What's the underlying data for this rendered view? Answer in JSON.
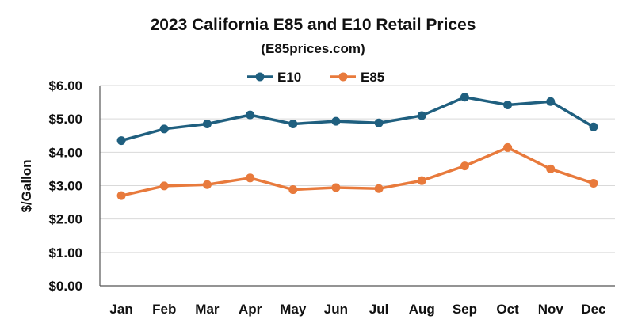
{
  "chart_data": {
    "type": "line",
    "title": "2023 California E85 and E10 Retail Prices",
    "subtitle": "(E85prices.com)",
    "xlabel": "",
    "ylabel": "$/Gallon",
    "categories": [
      "Jan",
      "Feb",
      "Mar",
      "Apr",
      "May",
      "Jun",
      "Jul",
      "Aug",
      "Sep",
      "Oct",
      "Nov",
      "Dec"
    ],
    "ylim": [
      0,
      6
    ],
    "yticks": [
      0,
      1,
      2,
      3,
      4,
      5,
      6
    ],
    "ytick_labels": [
      "$0.00",
      "$1.00",
      "$2.00",
      "$3.00",
      "$4.00",
      "$5.00",
      "$6.00"
    ],
    "grid": true,
    "legend_position": "top-center",
    "series": [
      {
        "name": "E10",
        "color": "#1f5f7f",
        "values": [
          4.35,
          4.7,
          4.85,
          5.12,
          4.85,
          4.93,
          4.88,
          5.1,
          5.65,
          5.42,
          5.52,
          4.76
        ]
      },
      {
        "name": "E85",
        "color": "#e87a3c",
        "values": [
          2.7,
          2.99,
          3.03,
          3.23,
          2.88,
          2.94,
          2.91,
          3.15,
          3.59,
          4.14,
          3.5,
          3.07
        ]
      }
    ]
  }
}
